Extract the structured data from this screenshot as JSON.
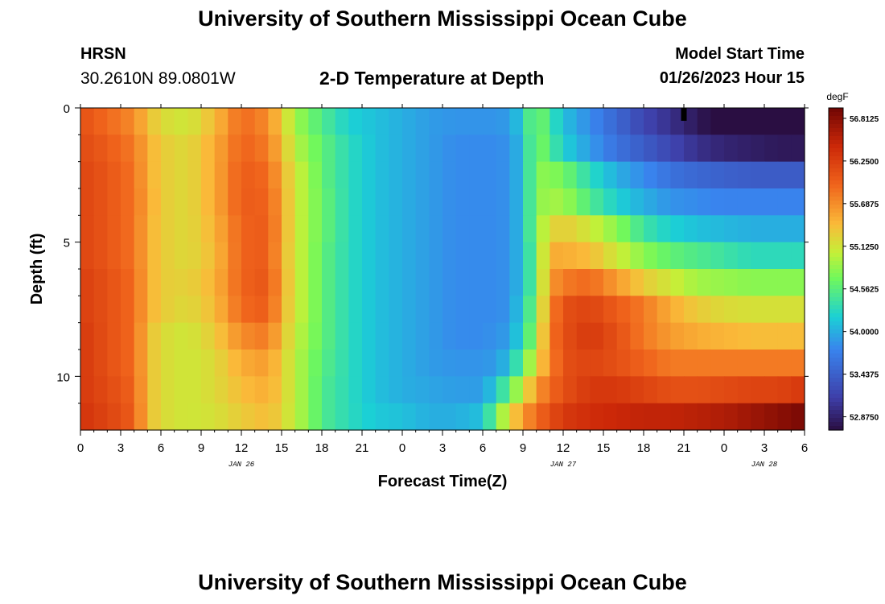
{
  "header": {
    "title": "University of Southern Mississippi Ocean Cube",
    "station": "HRSN",
    "location": "30.2610N  89.0801W",
    "subtitle": "2-D Temperature at Depth",
    "model_label": "Model Start Time",
    "model_time": "01/26/2023 Hour 15"
  },
  "footer": {
    "title": "University of Southern Mississippi Ocean Cube"
  },
  "chart_data": {
    "type": "heatmap",
    "title": "2-D Temperature at Depth",
    "xlabel": "Forecast Time(Z)",
    "ylabel": "Depth (ft)",
    "x_ticks": [
      "0",
      "3",
      "6",
      "9",
      "12",
      "15",
      "18",
      "21",
      "0",
      "3",
      "6",
      "9",
      "12",
      "15",
      "18",
      "21",
      "0",
      "3",
      "6"
    ],
    "x_tick_hours": [
      0,
      3,
      6,
      9,
      12,
      15,
      18,
      21,
      24,
      27,
      30,
      33,
      36,
      39,
      42,
      45,
      48,
      51,
      54
    ],
    "date_labels": [
      {
        "label": "JAN 26",
        "hour": 12
      },
      {
        "label": "JAN 27",
        "hour": 36
      },
      {
        "label": "JAN 28",
        "hour": 51
      }
    ],
    "y_ticks": [
      "0",
      "5",
      "10"
    ],
    "y_tick_values": [
      0,
      5,
      10
    ],
    "xlim_hours": [
      0,
      54
    ],
    "ylim_ft": [
      0,
      12
    ],
    "depth_rows_ft": [
      0.5,
      1.5,
      2.5,
      3.5,
      4.5,
      5.5,
      6.5,
      7.5,
      8.5,
      9.5,
      10.5,
      11.5
    ],
    "control_hours": [
      0,
      2,
      4,
      5,
      6,
      8,
      10,
      12,
      14,
      15,
      16,
      17,
      18,
      20,
      22,
      24,
      26,
      28,
      30,
      31,
      32,
      33,
      34,
      35,
      36,
      38,
      40,
      42,
      44,
      46,
      48,
      50,
      52,
      54
    ],
    "temperature_degF_by_depth": [
      [
        56.1,
        55.9,
        55.7,
        55.4,
        55.2,
        55.1,
        55.4,
        55.9,
        55.7,
        55.3,
        54.9,
        54.7,
        54.5,
        54.2,
        54.1,
        54.0,
        53.9,
        53.85,
        53.85,
        53.85,
        53.9,
        54.2,
        54.8,
        54.4,
        54.1,
        53.8,
        53.5,
        53.2,
        53.0,
        52.8,
        52.6,
        52.5,
        52.4,
        52.35
      ],
      [
        56.15,
        56.0,
        55.8,
        55.5,
        55.3,
        55.2,
        55.5,
        55.95,
        55.8,
        55.4,
        55.0,
        54.8,
        54.6,
        54.3,
        54.1,
        54.0,
        53.9,
        53.8,
        53.8,
        53.8,
        53.85,
        54.1,
        54.8,
        54.5,
        54.2,
        53.9,
        53.6,
        53.4,
        53.2,
        53.0,
        52.9,
        52.85,
        52.8,
        52.8
      ],
      [
        56.2,
        56.05,
        55.85,
        55.5,
        55.3,
        55.2,
        55.5,
        56.0,
        55.9,
        55.5,
        55.1,
        54.9,
        54.6,
        54.3,
        54.1,
        54.0,
        53.9,
        53.8,
        53.8,
        53.8,
        53.85,
        54.1,
        54.8,
        54.8,
        54.7,
        54.3,
        54.0,
        53.8,
        53.6,
        53.5,
        53.45,
        53.4,
        53.4,
        53.4
      ],
      [
        56.2,
        56.05,
        55.85,
        55.55,
        55.3,
        55.2,
        55.5,
        56.0,
        55.95,
        55.55,
        55.1,
        54.9,
        54.65,
        54.3,
        54.1,
        54.0,
        53.9,
        53.8,
        53.8,
        53.8,
        53.85,
        54.1,
        54.8,
        54.9,
        54.9,
        54.5,
        54.2,
        54.0,
        53.85,
        53.8,
        53.75,
        53.75,
        53.75,
        53.75
      ],
      [
        56.2,
        56.05,
        55.85,
        55.5,
        55.3,
        55.2,
        55.45,
        55.95,
        56.0,
        55.55,
        55.1,
        54.9,
        54.65,
        54.3,
        54.1,
        54.0,
        53.9,
        53.8,
        53.8,
        53.8,
        53.85,
        54.1,
        54.8,
        55.2,
        55.3,
        55.1,
        54.8,
        54.4,
        54.2,
        54.1,
        54.05,
        54.0,
        54.0,
        54.0
      ],
      [
        56.2,
        56.05,
        55.85,
        55.5,
        55.3,
        55.2,
        55.4,
        55.95,
        56.0,
        55.5,
        55.1,
        54.9,
        54.6,
        54.3,
        54.1,
        54.0,
        53.9,
        53.8,
        53.8,
        53.8,
        53.85,
        54.1,
        54.7,
        55.5,
        55.5,
        55.4,
        55.1,
        54.8,
        54.6,
        54.5,
        54.4,
        54.3,
        54.3,
        54.3
      ],
      [
        56.25,
        56.1,
        55.9,
        55.5,
        55.3,
        55.25,
        55.45,
        55.95,
        56.05,
        55.55,
        55.1,
        54.9,
        54.6,
        54.3,
        54.1,
        54.0,
        53.9,
        53.8,
        53.8,
        53.8,
        53.85,
        54.1,
        54.7,
        55.6,
        55.8,
        55.9,
        55.6,
        55.3,
        55.1,
        54.9,
        54.85,
        54.8,
        54.8,
        54.8
      ],
      [
        56.25,
        56.1,
        55.9,
        55.5,
        55.3,
        55.2,
        55.4,
        55.9,
        56.0,
        55.5,
        55.1,
        54.9,
        54.6,
        54.3,
        54.1,
        54.0,
        53.9,
        53.8,
        53.8,
        53.8,
        53.85,
        54.2,
        54.8,
        55.7,
        56.1,
        56.2,
        56.0,
        55.8,
        55.5,
        55.3,
        55.2,
        55.15,
        55.15,
        55.15
      ],
      [
        56.3,
        56.1,
        55.9,
        55.4,
        55.2,
        55.1,
        55.3,
        55.7,
        55.8,
        55.4,
        55.05,
        54.85,
        54.6,
        54.3,
        54.1,
        54.0,
        53.9,
        53.8,
        53.8,
        53.85,
        53.9,
        54.3,
        54.9,
        55.8,
        56.1,
        56.3,
        56.1,
        55.8,
        55.6,
        55.5,
        55.45,
        55.4,
        55.4,
        55.4
      ],
      [
        56.3,
        56.1,
        55.9,
        55.4,
        55.2,
        55.1,
        55.2,
        55.5,
        55.6,
        55.3,
        55.0,
        54.8,
        54.55,
        54.3,
        54.1,
        54.0,
        53.9,
        53.85,
        53.85,
        53.9,
        54.1,
        54.6,
        55.2,
        55.7,
        56.1,
        56.2,
        56.1,
        55.95,
        55.8,
        55.8,
        55.8,
        55.8,
        55.8,
        55.8
      ],
      [
        56.3,
        56.15,
        55.95,
        55.4,
        55.2,
        55.1,
        55.2,
        55.4,
        55.5,
        55.3,
        55.0,
        54.8,
        54.5,
        54.3,
        54.1,
        54.0,
        53.95,
        53.9,
        53.9,
        54.2,
        54.6,
        55.1,
        55.6,
        55.9,
        56.1,
        56.3,
        56.3,
        56.2,
        56.1,
        56.1,
        56.15,
        56.2,
        56.2,
        56.3
      ],
      [
        56.35,
        56.2,
        56.0,
        55.4,
        55.2,
        55.1,
        55.15,
        55.3,
        55.4,
        55.25,
        55.0,
        54.8,
        54.5,
        54.3,
        54.15,
        54.1,
        54.0,
        54.0,
        54.1,
        54.7,
        55.2,
        55.6,
        55.9,
        56.1,
        56.3,
        56.4,
        56.45,
        56.5,
        56.5,
        56.55,
        56.6,
        56.7,
        56.8,
        56.9
      ]
    ],
    "colorbar": {
      "unit": "degF",
      "ticks": [
        "56.8125",
        "56.2500",
        "55.6875",
        "55.1250",
        "54.5625",
        "54.0000",
        "53.4375",
        "52.8750"
      ],
      "tick_values": [
        56.8125,
        56.25,
        55.6875,
        55.125,
        54.5625,
        54.0,
        53.4375,
        52.875
      ],
      "range": [
        52.7,
        56.95
      ]
    },
    "annotations": [
      {
        "type": "marker",
        "hour": 45,
        "depth_ft": 0.25,
        "color": "#000000"
      }
    ]
  }
}
